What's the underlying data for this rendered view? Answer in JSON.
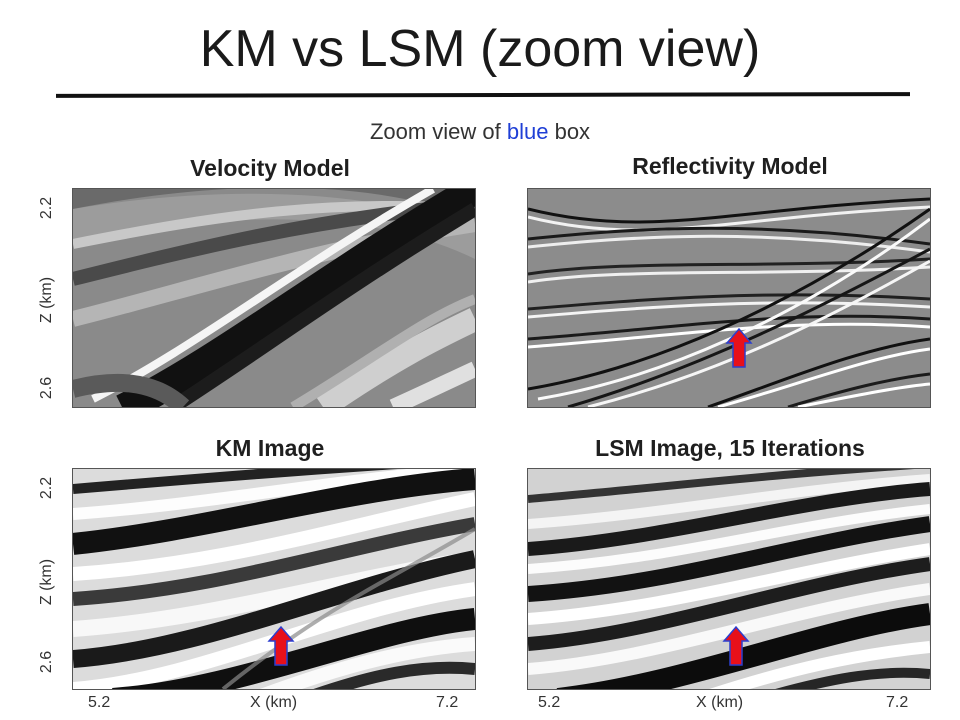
{
  "slide": {
    "title": "KM vs LSM (zoom view)",
    "subtitle_prefix": "Zoom view of ",
    "subtitle_highlight": "blue",
    "subtitle_suffix": " box",
    "highlight_color": "#1f3fd6"
  },
  "panels": {
    "velocity": {
      "title": "Velocity Model"
    },
    "reflectivity": {
      "title": "Reflectivity Model"
    },
    "km": {
      "title": "KM Image"
    },
    "lsm": {
      "title": "LSM Image, 15 Iterations"
    }
  },
  "axes": {
    "z_label": "Z (km)",
    "z_top": "2.2",
    "z_bottom": "2.6",
    "x_label": "X (km)",
    "x_left": "5.2",
    "x_right": "7.2"
  },
  "markers": {
    "arrow_color": "#e8101a",
    "arrow_outline": "#2b3fcf"
  }
}
